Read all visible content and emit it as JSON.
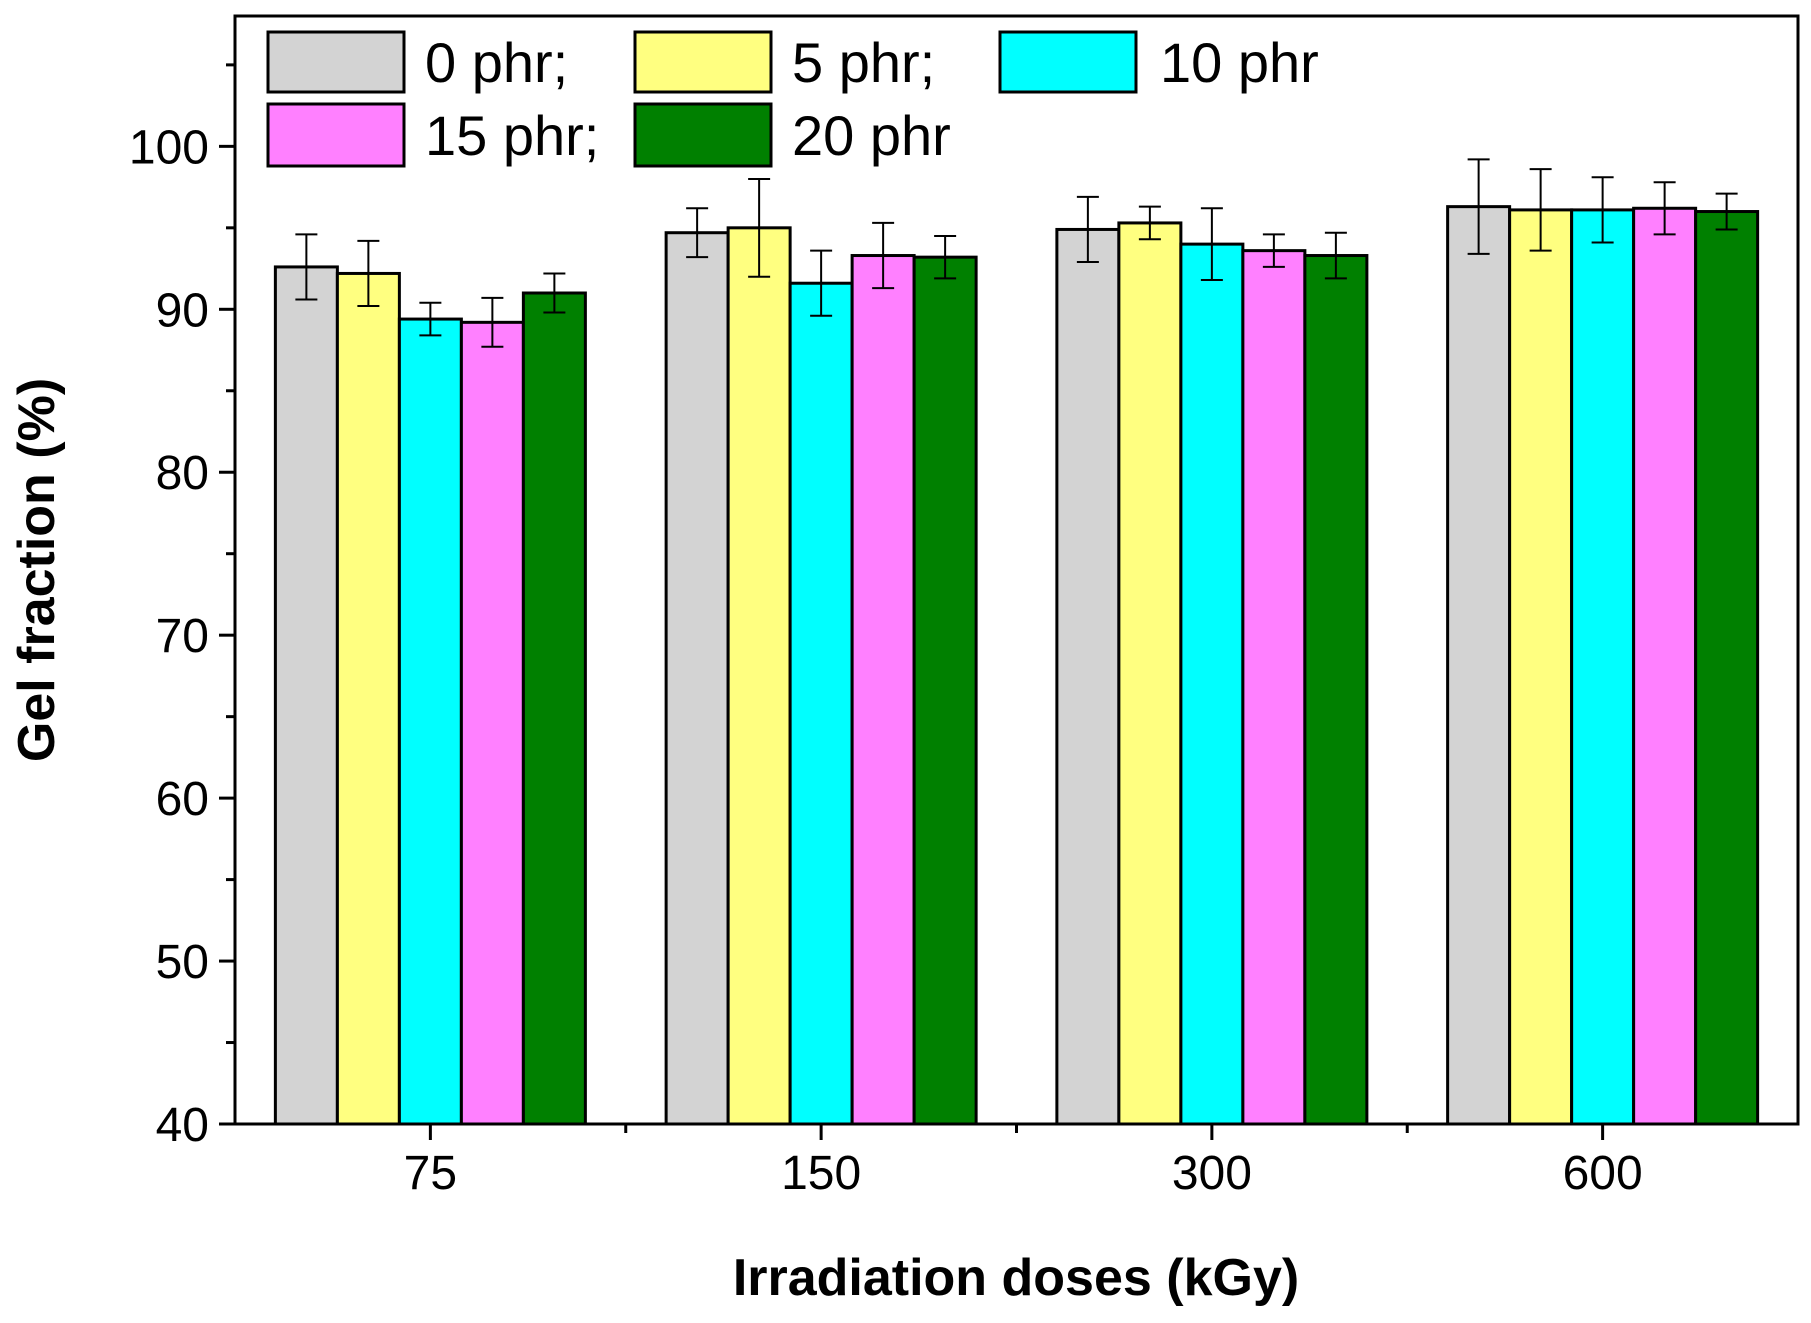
{
  "chart_data": {
    "type": "bar",
    "title": "",
    "xlabel": "Irradiation doses (kGy)",
    "ylabel": "Gel fraction (%)",
    "ylim": [
      40,
      108
    ],
    "yticks": [
      40,
      50,
      60,
      70,
      80,
      90,
      100
    ],
    "categories": [
      "75",
      "150",
      "300",
      "600"
    ],
    "series": [
      {
        "name": "0 phr;",
        "legend_label": "0 phr;",
        "color": "#d3d3d3",
        "values": [
          92.6,
          94.7,
          94.9,
          96.3
        ],
        "errors": [
          2.0,
          1.5,
          2.0,
          2.9
        ]
      },
      {
        "name": "5 phr;",
        "legend_label": "5 phr;",
        "color": "#ffff80",
        "values": [
          92.2,
          95.0,
          95.3,
          96.1
        ],
        "errors": [
          2.0,
          3.0,
          1.0,
          2.5
        ]
      },
      {
        "name": "10 phr",
        "legend_label": "10 phr",
        "color": "#00ffff",
        "values": [
          89.4,
          91.6,
          94.0,
          96.1
        ],
        "errors": [
          1.0,
          2.0,
          2.2,
          2.0
        ]
      },
      {
        "name": "15 phr;",
        "legend_label": "15 phr;",
        "color": "#ff80ff",
        "values": [
          89.2,
          93.3,
          93.6,
          96.2
        ],
        "errors": [
          1.5,
          2.0,
          1.0,
          1.6
        ]
      },
      {
        "name": "20 phr",
        "legend_label": "20 phr",
        "color": "#008000",
        "values": [
          91.0,
          93.2,
          93.3,
          96.0
        ],
        "errors": [
          1.2,
          1.3,
          1.4,
          1.1
        ]
      }
    ],
    "grid": false,
    "legend_position": "top-left",
    "error_bars": true
  }
}
